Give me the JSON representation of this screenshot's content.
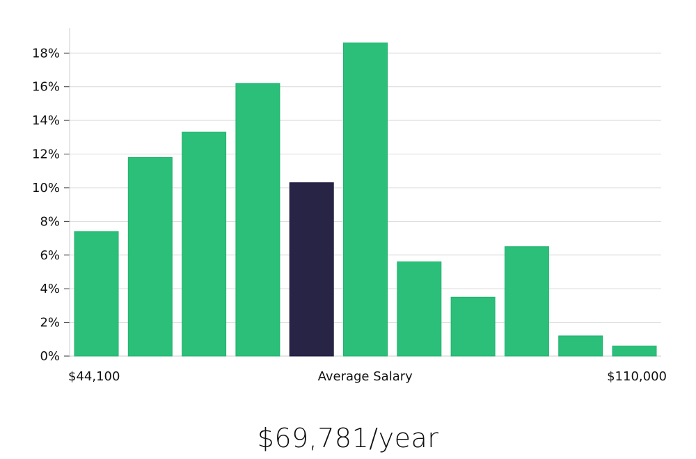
{
  "headline": "$69,781/year",
  "colors": {
    "bar": "#2bbf79",
    "highlight": "#282446",
    "grid": "#d9d9d9",
    "axis": "#cccccc"
  },
  "chart_data": {
    "type": "bar",
    "values": [
      7.4,
      11.8,
      13.3,
      16.2,
      10.3,
      18.6,
      5.6,
      3.5,
      6.5,
      1.2,
      0.6
    ],
    "highlight_index": 4,
    "ylim": [
      0,
      19.5
    ],
    "yticks": [
      0,
      2,
      4,
      6,
      8,
      10,
      12,
      14,
      16,
      18
    ],
    "ytick_labels": [
      "0%",
      "2%",
      "4%",
      "6%",
      "8%",
      "10%",
      "12%",
      "14%",
      "16%",
      "18%"
    ],
    "x_labels": {
      "left": "$44,100",
      "center": "Average Salary",
      "right": "$110,000"
    },
    "grid": true
  }
}
